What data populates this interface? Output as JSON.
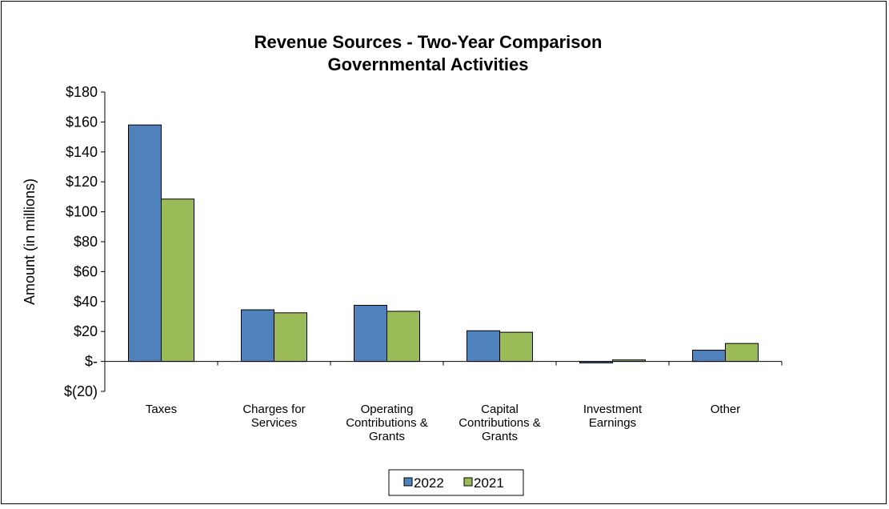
{
  "chart_data": {
    "type": "bar",
    "title": [
      "Revenue Sources - Two-Year Comparison",
      "Governmental Activities"
    ],
    "ylabel": "Amount (in millions)",
    "xlabel": "",
    "ylim": [
      -20,
      180
    ],
    "yticks": [
      {
        "value": 180,
        "label": "$180"
      },
      {
        "value": 160,
        "label": "$160"
      },
      {
        "value": 140,
        "label": "$140"
      },
      {
        "value": 120,
        "label": "$120"
      },
      {
        "value": 100,
        "label": "$100"
      },
      {
        "value": 80,
        "label": "$80"
      },
      {
        "value": 60,
        "label": "$60"
      },
      {
        "value": 40,
        "label": "$40"
      },
      {
        "value": 20,
        "label": "$20"
      },
      {
        "value": 0,
        "label": "$-"
      },
      {
        "value": -20,
        "label": "$(20)"
      }
    ],
    "categories": [
      [
        "Taxes"
      ],
      [
        "Charges for",
        "Services"
      ],
      [
        "Operating",
        "Contributions &",
        "Grants"
      ],
      [
        "Capital",
        "Contributions &",
        "Grants"
      ],
      [
        "Investment",
        "Earnings"
      ],
      [
        "Other"
      ]
    ],
    "series": [
      {
        "name": "2022",
        "color": "#4f81bd",
        "values": [
          158,
          34.5,
          37.5,
          20.5,
          -1,
          7.5
        ]
      },
      {
        "name": "2021",
        "color": "#9bbb59",
        "values": [
          108.5,
          32.5,
          33.5,
          19.5,
          1,
          12
        ]
      }
    ],
    "legend_position": "bottom",
    "grid": false
  }
}
